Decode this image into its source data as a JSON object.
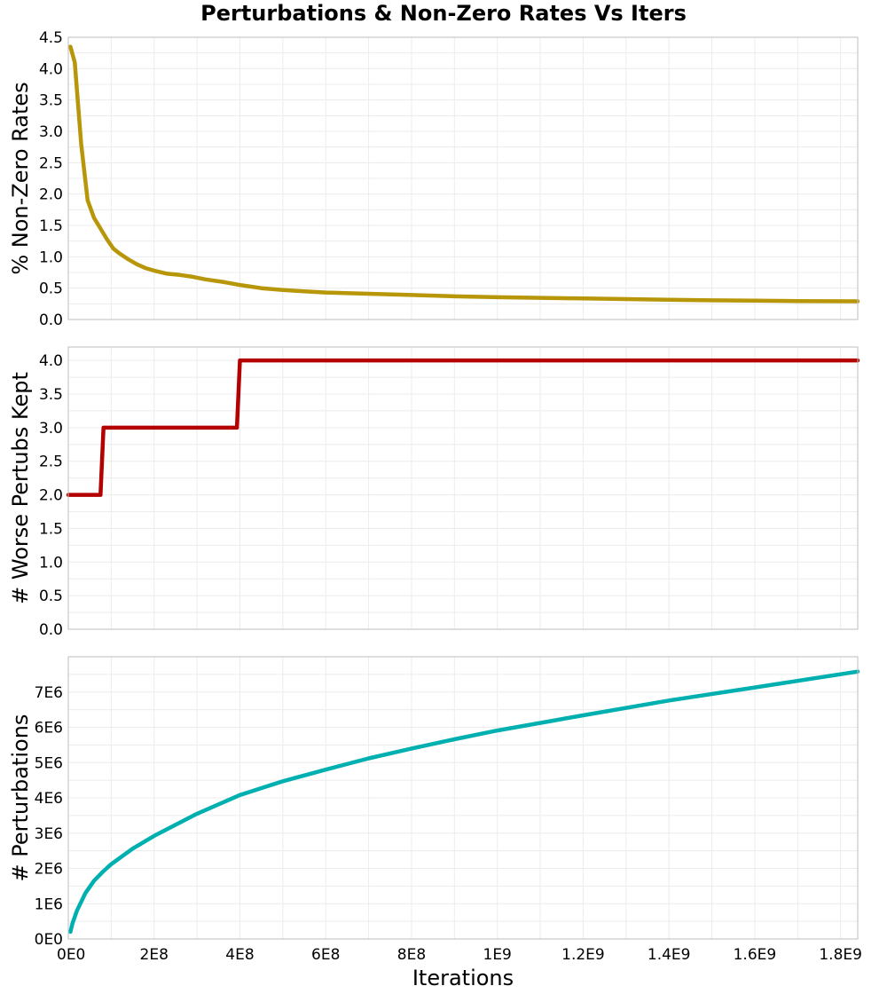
{
  "chart_data": {
    "title": "Perturbations & Non-Zero Rates Vs Iters",
    "xlabel": "Iterations",
    "x_ticks": [
      "0E0",
      "2E8",
      "4E8",
      "6E8",
      "8E8",
      "1E9",
      "1.2E9",
      "1.4E9",
      "1.6E9",
      "1.8E9"
    ],
    "x_tick_values": [
      0,
      200000000,
      400000000,
      600000000,
      800000000,
      1000000000,
      1200000000,
      1400000000,
      1600000000,
      1800000000
    ],
    "xlim": [
      0,
      1840000000
    ],
    "grid": true,
    "panels": [
      {
        "type": "line",
        "ylabel": "% Non-Zero Rates",
        "ylim": [
          0,
          4.5
        ],
        "y_ticks": [
          "0.0",
          "0.5",
          "1.0",
          "1.5",
          "2.0",
          "2.5",
          "3.0",
          "3.5",
          "4.0",
          "4.5"
        ],
        "y_tick_values": [
          0,
          0.5,
          1,
          1.5,
          2,
          2.5,
          3,
          3.5,
          4,
          4.5
        ],
        "color": "#b8960a",
        "x": [
          5000000,
          15000000,
          30000000,
          45000000,
          60000000,
          75000000,
          90000000,
          105000000,
          120000000,
          140000000,
          160000000,
          180000000,
          200000000,
          230000000,
          260000000,
          290000000,
          320000000,
          360000000,
          400000000,
          450000000,
          500000000,
          550000000,
          600000000,
          700000000,
          800000000,
          900000000,
          1000000000,
          1100000000,
          1200000000,
          1300000000,
          1400000000,
          1500000000,
          1600000000,
          1700000000,
          1840000000
        ],
        "y": [
          4.35,
          4.1,
          2.8,
          1.9,
          1.62,
          1.45,
          1.28,
          1.13,
          1.05,
          0.96,
          0.88,
          0.82,
          0.78,
          0.73,
          0.71,
          0.68,
          0.64,
          0.6,
          0.55,
          0.5,
          0.47,
          0.45,
          0.43,
          0.41,
          0.39,
          0.37,
          0.355,
          0.345,
          0.335,
          0.325,
          0.315,
          0.305,
          0.3,
          0.295,
          0.29
        ]
      },
      {
        "type": "line",
        "ylabel": "# Worse Pertubs Kept",
        "ylim": [
          0,
          4.2
        ],
        "y_ticks": [
          "0.0",
          "0.5",
          "1.0",
          "1.5",
          "2.0",
          "2.5",
          "3.0",
          "3.5",
          "4.0"
        ],
        "y_tick_values": [
          0,
          0.5,
          1,
          1.5,
          2,
          2.5,
          3,
          3.5,
          4
        ],
        "color": "#b30000",
        "x": [
          0,
          75000000,
          82000000,
          393000000,
          400000000,
          1840000000
        ],
        "y": [
          2,
          2,
          3,
          3,
          4,
          4
        ]
      },
      {
        "type": "line",
        "ylabel": "# Perturbations",
        "ylim": [
          0,
          8000000
        ],
        "y_ticks": [
          "0E0",
          "1E6",
          "2E6",
          "3E6",
          "4E6",
          "5E6",
          "6E6",
          "7E6"
        ],
        "y_tick_values": [
          0,
          1000000,
          2000000,
          3000000,
          4000000,
          5000000,
          6000000,
          7000000
        ],
        "color": "#00b0b0",
        "x": [
          5000000,
          10000000,
          20000000,
          40000000,
          60000000,
          80000000,
          100000000,
          150000000,
          200000000,
          300000000,
          400000000,
          500000000,
          600000000,
          700000000,
          800000000,
          900000000,
          1000000000,
          1200000000,
          1400000000,
          1600000000,
          1840000000
        ],
        "y": [
          200000,
          450000,
          800000,
          1300000,
          1650000,
          1900000,
          2120000,
          2560000,
          2920000,
          3550000,
          4080000,
          4470000,
          4800000,
          5120000,
          5400000,
          5660000,
          5910000,
          6340000,
          6760000,
          7130000,
          7580000
        ]
      }
    ]
  }
}
